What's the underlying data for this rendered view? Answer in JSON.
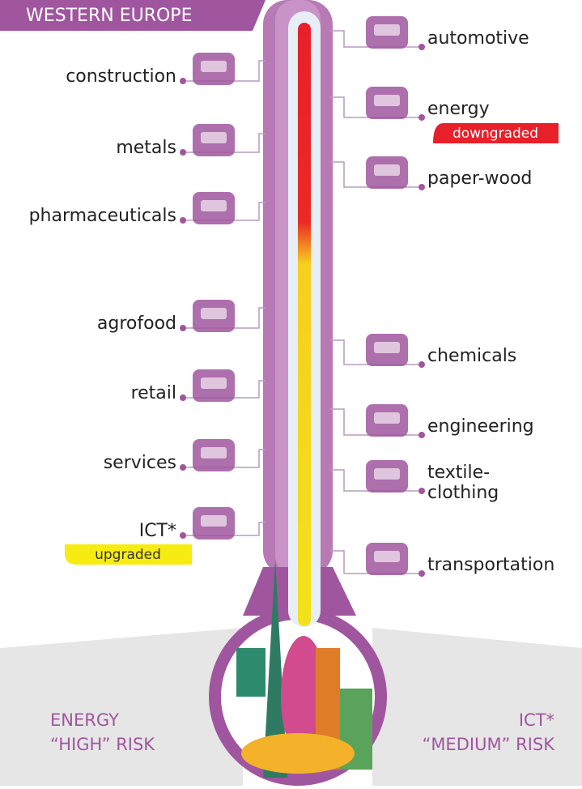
{
  "header": {
    "title": "WESTERN EUROPE"
  },
  "left_sectors": [
    {
      "label": "construction"
    },
    {
      "label": "metals"
    },
    {
      "label": "pharmaceuticals"
    },
    {
      "label": "agrofood"
    },
    {
      "label": "retail"
    },
    {
      "label": "services"
    },
    {
      "label": "ICT*",
      "badge": "upgraded"
    }
  ],
  "right_sectors": [
    {
      "label": "automotive"
    },
    {
      "label": "energy",
      "badge": "downgraded"
    },
    {
      "label": "paper-wood"
    },
    {
      "label": "chemicals"
    },
    {
      "label": "engineering"
    },
    {
      "label": "textile-\nclothing"
    },
    {
      "label": "transportation"
    }
  ],
  "footer": {
    "left": {
      "line1": "ENERGY",
      "line2": "“HIGH” RISK"
    },
    "right": {
      "line1": "ICT*",
      "line2": "“MEDIUM” RISK"
    }
  }
}
